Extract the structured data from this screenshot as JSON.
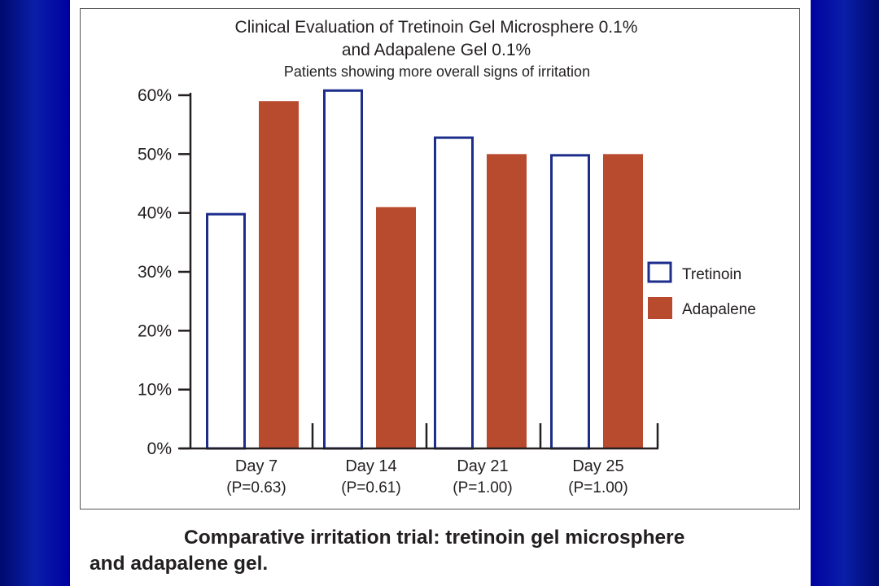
{
  "colors": {
    "slide_background": "#00008f",
    "tretinoin_fill": "#ffffff",
    "tretinoin_border": "#1c2d8c",
    "adapalene_fill": "#b84a2e",
    "text": "#231f20"
  },
  "chart_data": {
    "type": "bar",
    "title": "Clinical Evaluation of Tretinoin Gel Microsphere 0.1%",
    "title_line2": "and Adapalene Gel 0.1%",
    "subtitle": "Patients showing more overall signs of irritation",
    "categories": [
      "Day 7",
      "Day 14",
      "Day 21",
      "Day 25"
    ],
    "category_pvalues": [
      "(P=0.63)",
      "(P=0.61)",
      "(P=1.00)",
      "(P=1.00)"
    ],
    "series": [
      {
        "name": "Tretinoin",
        "values": [
          40,
          61,
          53,
          50
        ]
      },
      {
        "name": "Adapalene",
        "values": [
          59,
          41,
          50,
          50
        ]
      }
    ],
    "y_ticks": [
      {
        "value": 0,
        "label": "0%"
      },
      {
        "value": 10,
        "label": "10%"
      },
      {
        "value": 20,
        "label": "20%"
      },
      {
        "value": 30,
        "label": "30%"
      },
      {
        "value": 40,
        "label": "40%"
      },
      {
        "value": 50,
        "label": "50%"
      },
      {
        "value": 60,
        "label": "60%"
      }
    ],
    "ylim": [
      0,
      62
    ],
    "grid": false,
    "legend_position": "right"
  },
  "caption": {
    "line1": "Comparative irritation trial: tretinoin gel microsphere",
    "line2": "and adapalene gel."
  }
}
